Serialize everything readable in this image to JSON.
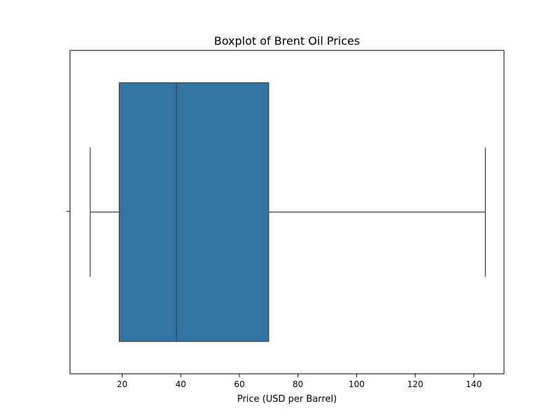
{
  "chart_data": {
    "type": "boxplot",
    "title": "Boxplot of Brent Oil Prices",
    "xlabel": "Price (USD per Barrel)",
    "ylabel": "",
    "orientation": "horizontal",
    "xlim": [
      2.2,
      150.3
    ],
    "xticks": [
      20,
      40,
      60,
      80,
      100,
      120,
      140
    ],
    "grid": false,
    "box": {
      "whisker_low": 9.1,
      "q1": 19.0,
      "median": 38.5,
      "q3": 70.0,
      "whisker_high": 143.95
    },
    "colors": {
      "box_fill": "#3274a1",
      "line": "#3f3f3f"
    }
  }
}
